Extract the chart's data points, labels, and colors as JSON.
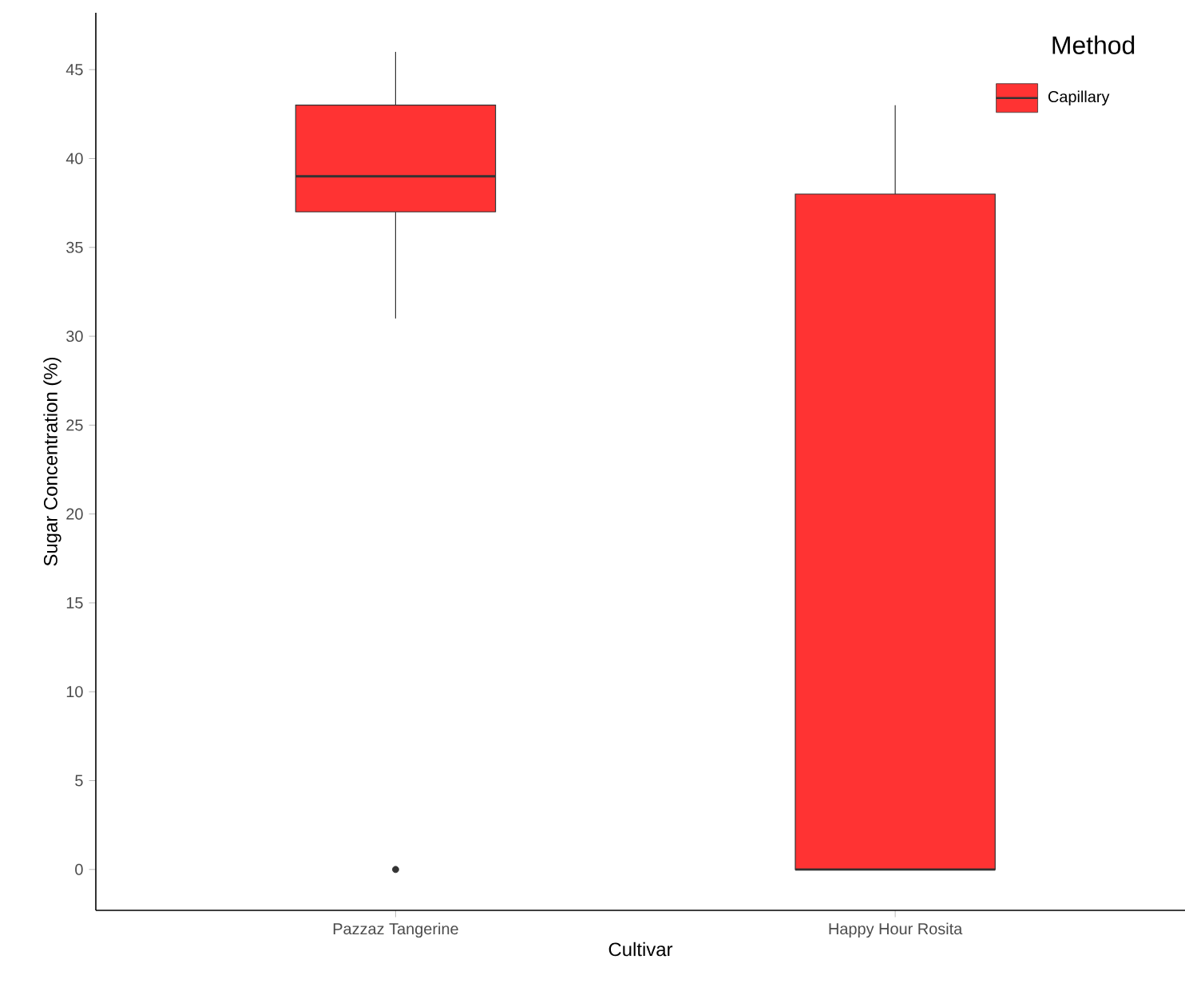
{
  "chart_data": {
    "type": "box",
    "xlabel": "Cultivar",
    "ylabel": "Sugar Concentration (%)",
    "legend_title": "Method",
    "categories": [
      "Pazzaz Tangerine",
      "Happy Hour Rosita"
    ],
    "series": [
      {
        "name": "Capillary",
        "color": "#ff3333",
        "boxes": [
          {
            "low": 31,
            "q1": 37,
            "median": 39,
            "q3": 43,
            "high": 46,
            "outliers": [
              0
            ]
          },
          {
            "low": 0,
            "q1": 0,
            "median": 0,
            "q3": 38,
            "high": 43
          }
        ]
      }
    ],
    "ylim": [
      -2.3,
      48.2
    ],
    "yticks": [
      0,
      5,
      10,
      15,
      20,
      25,
      30,
      35,
      40,
      45
    ],
    "legend": "top right",
    "grid": false
  }
}
